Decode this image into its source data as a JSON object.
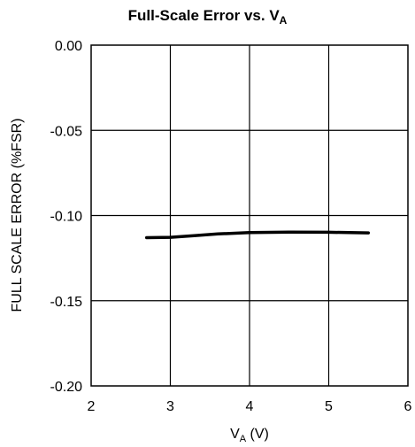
{
  "chart_data": {
    "type": "line",
    "title_main": "Full-Scale Error vs. V",
    "title_sub": "A",
    "xlabel_main": "V",
    "xlabel_sub": "A",
    "xlabel_unit": " (V)",
    "ylabel": "FULL SCALE ERROR (%FSR)",
    "xlim": [
      2,
      6
    ],
    "ylim": [
      -0.2,
      0.0
    ],
    "x_ticks": [
      "2",
      "3",
      "4",
      "5",
      "6"
    ],
    "y_ticks": [
      "0.00",
      "-0.05",
      "-0.10",
      "-0.15",
      "-0.20"
    ],
    "grid": true,
    "series": [
      {
        "x": [
          2.7,
          3.0,
          3.3,
          3.6,
          4.0,
          4.5,
          5.0,
          5.5
        ],
        "y": [
          -0.113,
          -0.1128,
          -0.1118,
          -0.1108,
          -0.11,
          -0.1097,
          -0.1098,
          -0.1102
        ]
      }
    ]
  }
}
